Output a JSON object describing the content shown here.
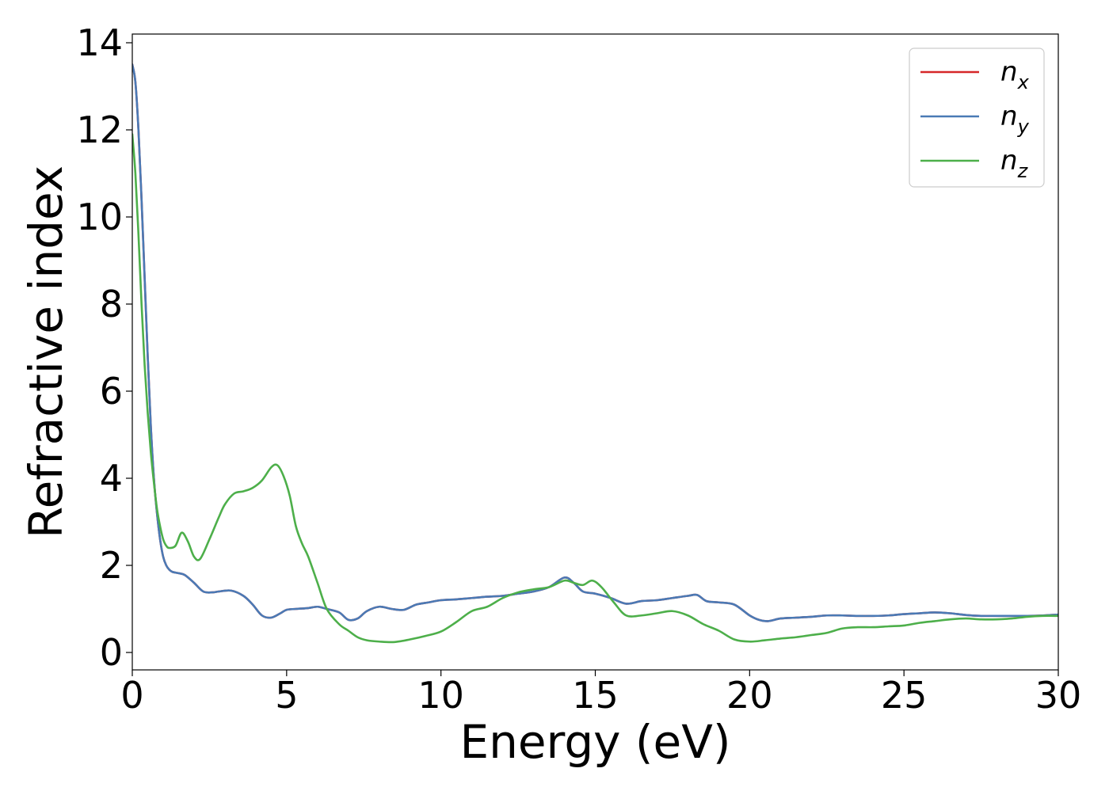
{
  "chart_data": {
    "type": "line",
    "title": "",
    "xlabel": "Energy (eV)",
    "ylabel": "Refractive index",
    "xlim": [
      0,
      30
    ],
    "ylim": [
      -0.4,
      14.2
    ],
    "xticks": [
      0,
      5,
      10,
      15,
      20,
      25,
      30
    ],
    "yticks": [
      0,
      2,
      4,
      6,
      8,
      10,
      12,
      14
    ],
    "grid": false,
    "legend_position": "top-right",
    "series": [
      {
        "name": "n_x",
        "legend_base": "n",
        "legend_sub": "x",
        "color": "#d62728",
        "x": [
          0,
          0.1,
          0.2,
          0.3,
          0.4,
          0.5,
          0.6,
          0.7,
          0.8,
          0.9,
          1.0,
          1.1,
          1.2,
          1.3,
          1.5,
          1.7,
          2.0,
          2.3,
          2.6,
          2.8,
          3.2,
          3.6,
          3.9,
          4.2,
          4.5,
          4.8,
          5.0,
          5.3,
          5.7,
          6.0,
          6.3,
          6.7,
          7.0,
          7.3,
          7.6,
          8.0,
          8.4,
          8.8,
          9.2,
          9.6,
          10.0,
          10.5,
          11.0,
          11.5,
          12.0,
          12.5,
          13.0,
          13.5,
          14.0,
          14.3,
          14.6,
          15.0,
          15.5,
          16.0,
          16.5,
          17.0,
          17.5,
          18.0,
          18.3,
          18.6,
          19.0,
          19.5,
          20.0,
          20.3,
          20.6,
          21.0,
          21.5,
          22.0,
          22.5,
          23.0,
          23.5,
          24.0,
          24.5,
          25.0,
          25.5,
          26.0,
          26.5,
          27.0,
          27.5,
          28.0,
          28.5,
          29.0,
          29.5,
          30.0
        ],
        "y": [
          13.5,
          13.1,
          12.0,
          10.4,
          8.6,
          6.8,
          5.2,
          4.0,
          3.2,
          2.6,
          2.2,
          2.0,
          1.9,
          1.85,
          1.82,
          1.78,
          1.6,
          1.4,
          1.38,
          1.4,
          1.42,
          1.3,
          1.1,
          0.85,
          0.8,
          0.9,
          0.98,
          1.0,
          1.02,
          1.05,
          1.0,
          0.92,
          0.75,
          0.78,
          0.95,
          1.05,
          1.0,
          0.98,
          1.1,
          1.15,
          1.2,
          1.22,
          1.25,
          1.28,
          1.3,
          1.35,
          1.4,
          1.5,
          1.72,
          1.6,
          1.4,
          1.35,
          1.25,
          1.12,
          1.18,
          1.2,
          1.25,
          1.3,
          1.32,
          1.18,
          1.15,
          1.1,
          0.85,
          0.75,
          0.72,
          0.78,
          0.8,
          0.82,
          0.85,
          0.85,
          0.84,
          0.84,
          0.85,
          0.88,
          0.9,
          0.92,
          0.9,
          0.86,
          0.84,
          0.84,
          0.84,
          0.84,
          0.85,
          0.87
        ]
      },
      {
        "name": "n_y",
        "legend_base": "n",
        "legend_sub": "y",
        "color": "#4a7ab5",
        "x": [
          0,
          0.1,
          0.2,
          0.3,
          0.4,
          0.5,
          0.6,
          0.7,
          0.8,
          0.9,
          1.0,
          1.1,
          1.2,
          1.3,
          1.5,
          1.7,
          2.0,
          2.3,
          2.6,
          2.8,
          3.2,
          3.6,
          3.9,
          4.2,
          4.5,
          4.8,
          5.0,
          5.3,
          5.7,
          6.0,
          6.3,
          6.7,
          7.0,
          7.3,
          7.6,
          8.0,
          8.4,
          8.8,
          9.2,
          9.6,
          10.0,
          10.5,
          11.0,
          11.5,
          12.0,
          12.5,
          13.0,
          13.5,
          14.0,
          14.3,
          14.6,
          15.0,
          15.5,
          16.0,
          16.5,
          17.0,
          17.5,
          18.0,
          18.3,
          18.6,
          19.0,
          19.5,
          20.0,
          20.3,
          20.6,
          21.0,
          21.5,
          22.0,
          22.5,
          23.0,
          23.5,
          24.0,
          24.5,
          25.0,
          25.5,
          26.0,
          26.5,
          27.0,
          27.5,
          28.0,
          28.5,
          29.0,
          29.5,
          30.0
        ],
        "y": [
          13.5,
          13.1,
          12.0,
          10.4,
          8.6,
          6.8,
          5.2,
          4.0,
          3.2,
          2.6,
          2.2,
          2.0,
          1.9,
          1.85,
          1.82,
          1.78,
          1.6,
          1.4,
          1.38,
          1.4,
          1.42,
          1.3,
          1.1,
          0.85,
          0.8,
          0.9,
          0.98,
          1.0,
          1.02,
          1.05,
          1.0,
          0.92,
          0.75,
          0.78,
          0.95,
          1.05,
          1.0,
          0.98,
          1.1,
          1.15,
          1.2,
          1.22,
          1.25,
          1.28,
          1.3,
          1.35,
          1.4,
          1.5,
          1.72,
          1.6,
          1.4,
          1.35,
          1.25,
          1.12,
          1.18,
          1.2,
          1.25,
          1.3,
          1.32,
          1.18,
          1.15,
          1.1,
          0.85,
          0.75,
          0.72,
          0.78,
          0.8,
          0.82,
          0.85,
          0.85,
          0.84,
          0.84,
          0.85,
          0.88,
          0.9,
          0.92,
          0.9,
          0.86,
          0.84,
          0.84,
          0.84,
          0.84,
          0.85,
          0.87
        ]
      },
      {
        "name": "n_z",
        "legend_base": "n",
        "legend_sub": "z",
        "color": "#4daf4a",
        "x": [
          0,
          0.1,
          0.2,
          0.3,
          0.4,
          0.5,
          0.6,
          0.7,
          0.8,
          0.9,
          1.0,
          1.1,
          1.2,
          1.4,
          1.6,
          1.8,
          2.0,
          2.2,
          2.5,
          2.8,
          3.0,
          3.3,
          3.6,
          3.9,
          4.2,
          4.5,
          4.7,
          4.9,
          5.1,
          5.3,
          5.5,
          5.7,
          6.0,
          6.3,
          6.7,
          7.0,
          7.3,
          7.6,
          8.0,
          8.5,
          9.0,
          9.5,
          10.0,
          10.5,
          11.0,
          11.5,
          12.0,
          12.5,
          13.0,
          13.5,
          14.0,
          14.3,
          14.6,
          14.9,
          15.2,
          15.6,
          16.0,
          16.5,
          17.0,
          17.5,
          18.0,
          18.5,
          19.0,
          19.5,
          20.0,
          20.5,
          21.0,
          21.5,
          22.0,
          22.5,
          23.0,
          23.5,
          24.0,
          24.5,
          25.0,
          25.5,
          26.0,
          26.5,
          27.0,
          27.5,
          28.0,
          28.5,
          29.0,
          29.5,
          30.0
        ],
        "y": [
          11.9,
          11.0,
          9.6,
          8.0,
          6.6,
          5.5,
          4.6,
          3.9,
          3.3,
          2.9,
          2.6,
          2.45,
          2.4,
          2.45,
          2.75,
          2.55,
          2.2,
          2.15,
          2.6,
          3.1,
          3.4,
          3.65,
          3.7,
          3.78,
          3.95,
          4.25,
          4.3,
          4.05,
          3.6,
          2.9,
          2.5,
          2.2,
          1.6,
          1.0,
          0.65,
          0.5,
          0.35,
          0.28,
          0.25,
          0.24,
          0.3,
          0.38,
          0.48,
          0.7,
          0.95,
          1.05,
          1.25,
          1.38,
          1.45,
          1.5,
          1.65,
          1.6,
          1.55,
          1.65,
          1.5,
          1.15,
          0.85,
          0.85,
          0.9,
          0.95,
          0.85,
          0.65,
          0.5,
          0.3,
          0.25,
          0.28,
          0.32,
          0.35,
          0.4,
          0.45,
          0.55,
          0.58,
          0.58,
          0.6,
          0.62,
          0.68,
          0.72,
          0.76,
          0.78,
          0.76,
          0.76,
          0.78,
          0.82,
          0.84,
          0.84
        ]
      }
    ]
  }
}
